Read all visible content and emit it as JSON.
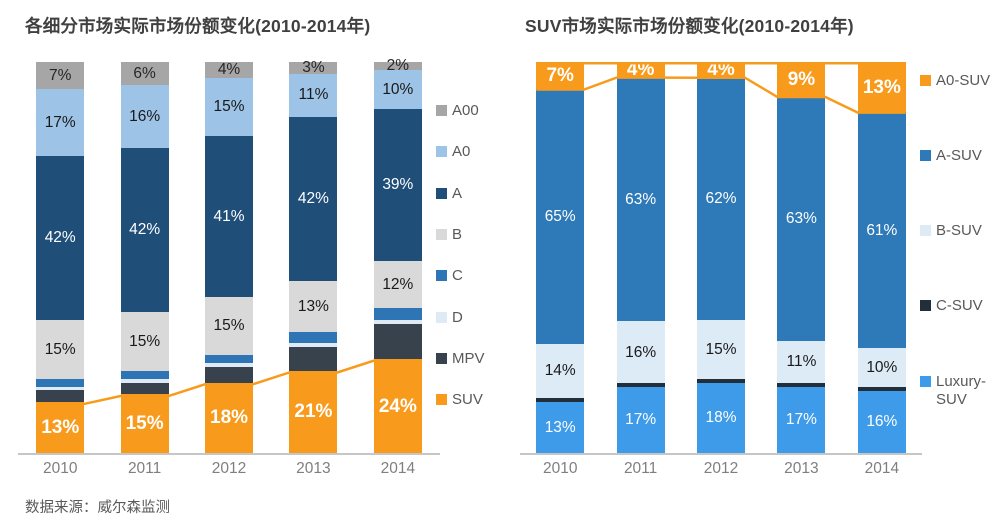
{
  "source_note": "数据来源：威尔森监测",
  "colors": {
    "title_text": "#404040",
    "axis_line": "#c6c6c6",
    "tick_text": "#7f7f7f",
    "legend_text": "#595959",
    "accent_orange": "#F89B1C"
  },
  "chart_data": [
    {
      "type": "bar",
      "stacked": "percent",
      "title": "各细分市场实际市场份额变化(2010-2014年)",
      "categories": [
        "2010",
        "2011",
        "2012",
        "2013",
        "2014"
      ],
      "xlabel": "",
      "ylabel": "",
      "ylim": [
        0,
        100
      ],
      "grid": false,
      "legend_position": "right",
      "series": [
        {
          "name": "A00",
          "color": "#A6A6A6",
          "text_color": "#262626",
          "labels": true,
          "emphasis": false,
          "values": [
            7,
            6,
            4,
            3,
            2
          ]
        },
        {
          "name": "A0",
          "color": "#9DC3E6",
          "text_color": "#1a1a1a",
          "labels": true,
          "emphasis": false,
          "values": [
            17,
            16,
            15,
            11,
            10
          ]
        },
        {
          "name": "A",
          "color": "#1F4E79",
          "text_color": "#ffffff",
          "labels": true,
          "emphasis": false,
          "values": [
            42,
            42,
            41,
            42,
            39
          ]
        },
        {
          "name": "B",
          "color": "#D9D9D9",
          "text_color": "#1a1a1a",
          "labels": true,
          "emphasis": false,
          "values": [
            15,
            15,
            15,
            13,
            12
          ]
        },
        {
          "name": "C",
          "color": "#2E75B6",
          "text_color": "#ffffff",
          "labels": false,
          "emphasis": false,
          "values": [
            2,
            2,
            2,
            3,
            3
          ]
        },
        {
          "name": "D",
          "color": "#DEEBF7",
          "text_color": "#1a1a1a",
          "labels": false,
          "emphasis": false,
          "values": [
            1,
            1,
            1,
            1,
            1
          ]
        },
        {
          "name": "MPV",
          "color": "#37424C",
          "text_color": "#ffffff",
          "labels": false,
          "emphasis": false,
          "values": [
            3,
            3,
            4,
            6,
            9
          ]
        },
        {
          "name": "SUV",
          "color": "#F89B1C",
          "text_color": "#ffffff",
          "labels": true,
          "emphasis": true,
          "values": [
            13,
            15,
            18,
            21,
            24
          ]
        }
      ],
      "line_overlay": {
        "series": "SUV",
        "edge": "top",
        "color": "#F89B1C"
      },
      "top_rule": false
    },
    {
      "type": "bar",
      "stacked": "percent",
      "title": "SUV市场实际市场份额变化(2010-2014年)",
      "categories": [
        "2010",
        "2011",
        "2012",
        "2013",
        "2014"
      ],
      "xlabel": "",
      "ylabel": "",
      "ylim": [
        0,
        100
      ],
      "grid": false,
      "legend_position": "right",
      "series": [
        {
          "name": "A0-SUV",
          "color": "#F89B1C",
          "text_color": "#ffffff",
          "labels": true,
          "emphasis": true,
          "values": [
            7,
            4,
            4,
            9,
            13
          ]
        },
        {
          "name": "A-SUV",
          "color": "#2E79B8",
          "text_color": "#ffffff",
          "labels": true,
          "emphasis": false,
          "values": [
            65,
            63,
            62,
            63,
            61
          ]
        },
        {
          "name": "B-SUV",
          "color": "#DDEBF7",
          "text_color": "#1a1a1a",
          "labels": true,
          "emphasis": false,
          "values": [
            14,
            16,
            15,
            11,
            10
          ]
        },
        {
          "name": "C-SUV",
          "color": "#222E3A",
          "text_color": "#ffffff",
          "labels": false,
          "emphasis": false,
          "values": [
            1,
            1,
            1,
            1,
            1
          ]
        },
        {
          "name": "Luxury-SUV",
          "color": "#3D9BE9",
          "text_color": "#ffffff",
          "labels": true,
          "emphasis": false,
          "values": [
            13,
            17,
            18,
            17,
            16
          ]
        }
      ],
      "line_overlay": {
        "series": "A0-SUV",
        "edge": "bottom",
        "color": "#F89B1C"
      },
      "top_rule": true
    }
  ]
}
